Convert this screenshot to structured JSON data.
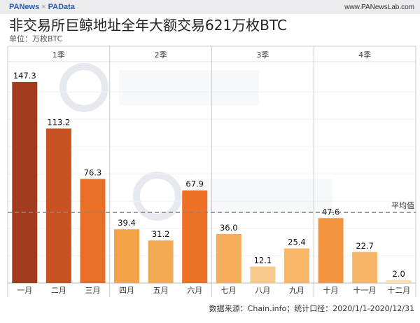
{
  "header": {
    "brand_left": "PANews",
    "brand_sep": "×",
    "brand_right": "PAData",
    "site": "www.PANewsLab.com"
  },
  "watermarks": [
    "PANews",
    "PAData",
    "金色财经"
  ],
  "chart_data": {
    "type": "bar",
    "title": "非交易所巨鲸地址全年大额交易621万枚BTC",
    "subtitle": "单位：万枚BTC",
    "quarters": [
      "1季",
      "2季",
      "3季",
      "4季"
    ],
    "categories": [
      "一月",
      "二月",
      "三月",
      "四月",
      "五月",
      "六月",
      "七月",
      "八月",
      "九月",
      "十月",
      "十一月",
      "十二月"
    ],
    "values": [
      147.3,
      113.2,
      76.3,
      39.4,
      31.2,
      67.9,
      36.0,
      12.1,
      25.4,
      47.6,
      22.7,
      2.0
    ],
    "value_labels": [
      "147.3",
      "113.2",
      "76.3",
      "39.4",
      "31.2",
      "67.9",
      "36.0",
      "12.1",
      "25.4",
      "47.6",
      "22.7",
      "2.0"
    ],
    "colors": [
      "#a23c1f",
      "#c85223",
      "#ea6f27",
      "#f2a247",
      "#f3aa55",
      "#ee7128",
      "#f4ae5b",
      "#f8c98c",
      "#f6b868",
      "#f39441",
      "#f6b668",
      "#f9dcae"
    ],
    "average": {
      "label": "平均值",
      "value": 51.75
    },
    "ylim": [
      0,
      150
    ],
    "grid": true,
    "source": "数据来源：Chain.info；统计口径：2020/1/1-2020/12/31"
  }
}
